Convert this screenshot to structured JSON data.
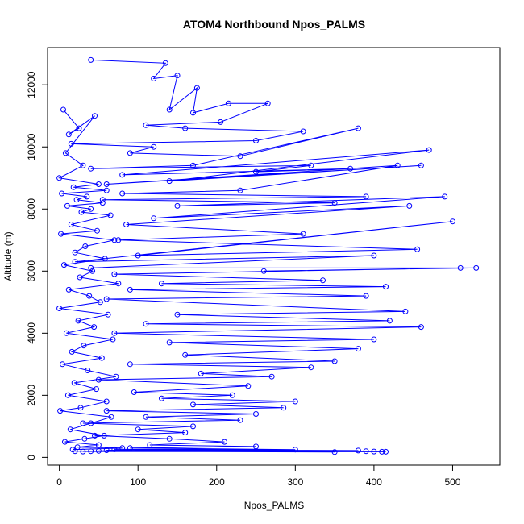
{
  "chart_data": {
    "type": "line",
    "title": "ATOM4 Northbound Npos_PALMS",
    "xlabel": "Npos_PALMS",
    "ylabel": "Altitude (m)",
    "xlim": [
      -15,
      560
    ],
    "ylim": [
      -250,
      13200
    ],
    "xticks": [
      "0",
      "100",
      "200",
      "300",
      "400",
      "500"
    ],
    "yticks": [
      "0",
      "2000",
      "4000",
      "6000",
      "8000",
      "10000",
      "12000"
    ],
    "grid": false,
    "legend": "none",
    "series_color": "#0000ff",
    "markers": "open-circle",
    "series": [
      {
        "x": [
          40,
          135,
          120,
          150,
          140,
          175,
          170,
          215,
          265,
          205,
          110,
          160,
          310,
          250,
          15,
          120,
          90,
          230,
          380,
          170,
          40,
          320,
          250,
          370,
          80,
          470,
          140,
          460,
          60,
          430,
          230,
          80,
          390,
          55,
          350,
          150,
          490,
          120,
          445,
          85,
          310,
          75,
          455,
          100,
          500,
          20,
          400,
          40,
          530,
          260,
          510,
          70,
          335,
          130,
          415,
          90,
          390,
          60,
          440,
          150,
          420,
          110,
          460,
          70,
          400,
          140,
          380,
          160,
          350,
          90,
          320,
          180,
          270,
          50,
          240,
          95,
          220,
          130,
          300,
          170,
          285,
          60,
          250,
          110,
          230,
          30,
          170,
          100,
          160,
          45,
          140,
          210,
          115,
          250,
          90,
          300,
          70,
          380,
          60,
          390,
          50,
          400,
          40,
          410,
          30,
          415,
          20,
          350
        ],
        "y": [
          12800,
          12700,
          12200,
          12300,
          11200,
          11900,
          11100,
          11400,
          11400,
          10800,
          10700,
          10600,
          10500,
          10200,
          10100,
          10000,
          9800,
          9700,
          10600,
          9400,
          9300,
          9400,
          9200,
          9300,
          9100,
          9900,
          8900,
          9400,
          8800,
          9400,
          8600,
          8500,
          8400,
          8300,
          8200,
          8100,
          8400,
          7700,
          8100,
          7500,
          7200,
          7000,
          6700,
          6500,
          7600,
          6300,
          6500,
          6100,
          6100,
          6000,
          6100,
          5900,
          5700,
          5600,
          5500,
          5400,
          5200,
          5100,
          4700,
          4600,
          4400,
          4300,
          4200,
          4000,
          3800,
          3700,
          3500,
          3300,
          3100,
          3000,
          2900,
          2700,
          2600,
          2500,
          2300,
          2100,
          2000,
          1900,
          1800,
          1700,
          1600,
          1500,
          1400,
          1300,
          1200,
          1100,
          1000,
          900,
          800,
          700,
          600,
          500,
          400,
          350,
          300,
          250,
          260,
          220,
          230,
          200,
          210,
          190,
          200,
          180,
          190,
          180,
          200,
          170
        ]
      },
      {
        "x": [
          5,
          25,
          12,
          45,
          8,
          30,
          0,
          50,
          18,
          60,
          3,
          35,
          22,
          55,
          10,
          40,
          28,
          65,
          15,
          48,
          2,
          70,
          33,
          20,
          58,
          6,
          42,
          26,
          75,
          12,
          38,
          52,
          0,
          62,
          24,
          44,
          9,
          68,
          31,
          16,
          54,
          4,
          36,
          72,
          19,
          47,
          11,
          60,
          27,
          1,
          66,
          40,
          14,
          57,
          32,
          7,
          50,
          23,
          80,
          17
        ],
        "y": [
          11200,
          10600,
          10400,
          11000,
          9800,
          9400,
          9000,
          8800,
          8700,
          8600,
          8500,
          8400,
          8300,
          8200,
          8100,
          8000,
          7900,
          7800,
          7500,
          7300,
          7200,
          7000,
          6800,
          6600,
          6400,
          6200,
          6000,
          5800,
          5600,
          5400,
          5200,
          5000,
          4800,
          4600,
          4400,
          4200,
          4000,
          3800,
          3600,
          3400,
          3200,
          3000,
          2800,
          2600,
          2400,
          2200,
          2000,
          1800,
          1600,
          1500,
          1300,
          1100,
          900,
          700,
          600,
          500,
          400,
          330,
          300,
          250
        ]
      }
    ]
  }
}
